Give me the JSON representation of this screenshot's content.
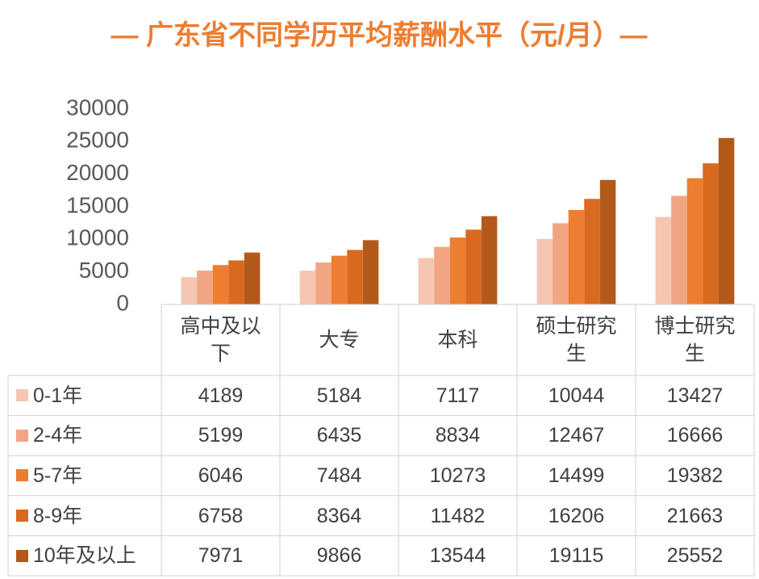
{
  "chart_data": {
    "type": "bar",
    "title": "— 广东省不同学历平均薪酬水平（元/月）—",
    "categories": [
      "高中及以下",
      "大专",
      "本科",
      "硕士研究生",
      "博士研究生"
    ],
    "series": [
      {
        "name": "0-1年",
        "color": "#f5c6b1",
        "values": [
          4189,
          5184,
          7117,
          10044,
          13427
        ]
      },
      {
        "name": "2-4年",
        "color": "#f1a582",
        "values": [
          5199,
          6435,
          8834,
          12467,
          16666
        ]
      },
      {
        "name": "5-7年",
        "color": "#ed7d31",
        "values": [
          6046,
          7484,
          10273,
          14499,
          19382
        ]
      },
      {
        "name": "8-9年",
        "color": "#d8691f",
        "values": [
          6758,
          8364,
          11482,
          16206,
          21663
        ]
      },
      {
        "name": "10年及以上",
        "color": "#b35a1b",
        "values": [
          7971,
          9866,
          13544,
          19115,
          25552
        ]
      }
    ],
    "ylim": [
      0,
      30000
    ],
    "yticks": [
      0,
      5000,
      10000,
      15000,
      20000,
      25000,
      30000
    ],
    "grid": false
  }
}
